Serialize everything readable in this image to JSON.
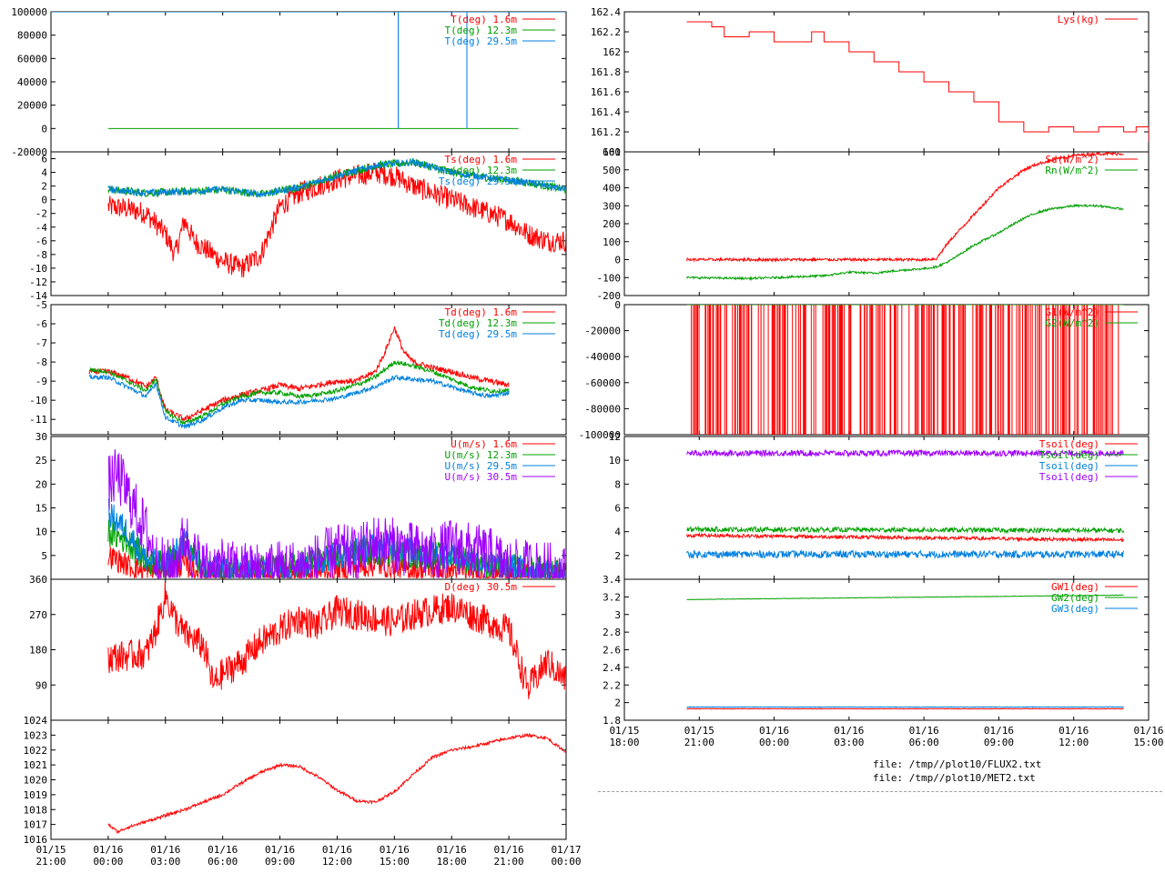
{
  "colors": {
    "red": "#ff0000",
    "green": "#00a000",
    "blue": "#0080e0",
    "purple": "#a000ff",
    "axis": "#000000"
  },
  "files": [
    "file: /tmp//plot10/FLUX2.txt",
    "file: /tmp//plot10/MET2.txt"
  ],
  "left_x_axis": {
    "labels": [
      [
        "01/15",
        "21:00"
      ],
      [
        "01/16",
        "00:00"
      ],
      [
        "01/16",
        "03:00"
      ],
      [
        "01/16",
        "06:00"
      ],
      [
        "01/16",
        "09:00"
      ],
      [
        "01/16",
        "12:00"
      ],
      [
        "01/16",
        "15:00"
      ],
      [
        "01/16",
        "18:00"
      ],
      [
        "01/16",
        "21:00"
      ],
      [
        "01/17",
        "00:00"
      ]
    ],
    "range_hours": [
      -3,
      24
    ]
  },
  "right_x_axis": {
    "labels": [
      [
        "01/15",
        "18:00"
      ],
      [
        "01/15",
        "21:00"
      ],
      [
        "01/16",
        "00:00"
      ],
      [
        "01/16",
        "03:00"
      ],
      [
        "01/16",
        "06:00"
      ],
      [
        "01/16",
        "09:00"
      ],
      [
        "01/16",
        "12:00"
      ],
      [
        "01/16",
        "15:00"
      ]
    ],
    "range_hours": [
      -6,
      15
    ]
  },
  "chart_data": [
    {
      "id": "T",
      "type": "line",
      "col": "left",
      "ylim": [
        -20000,
        100000
      ],
      "yticks": [
        "-20000",
        "0",
        "20000",
        "40000",
        "60000",
        "80000",
        "100000"
      ],
      "series": [
        {
          "name": "T(deg)  1.6m",
          "color": "red"
        },
        {
          "name": "T(deg) 12.3m",
          "color": "green"
        },
        {
          "name": "T(deg) 29.5m",
          "color": "blue"
        }
      ],
      "x_range_hours": [
        0,
        21.5
      ],
      "baseline_value": 0,
      "spikes_hours": [
        15.2,
        18.8
      ],
      "spike_value": 100000
    },
    {
      "id": "Ts",
      "type": "line",
      "col": "left",
      "ylim": [
        -14,
        7
      ],
      "yticks": [
        "-14",
        "-12",
        "-10",
        "-8",
        "-6",
        "-4",
        "-2",
        "0",
        "2",
        "4",
        "6"
      ],
      "series": [
        {
          "name": "Ts(deg)  1.6m",
          "color": "red",
          "x_hours": [
            0,
            1,
            2,
            3,
            3.5,
            4,
            4.5,
            5,
            6,
            7,
            8,
            9,
            10,
            11,
            12,
            13,
            14,
            15,
            16,
            17,
            18,
            19,
            20,
            21,
            22,
            23,
            24
          ],
          "y": [
            -1,
            -1.3,
            -2,
            -5,
            -8,
            -3,
            -6,
            -7,
            -9,
            -10,
            -8,
            -1,
            1,
            2,
            3,
            3.5,
            4,
            3.5,
            2,
            1,
            0,
            -1,
            -2,
            -3,
            -5,
            -6,
            -6
          ]
        },
        {
          "name": "Ts(deg) 12.3m",
          "color": "green",
          "x_hours": [
            0,
            2,
            4,
            6,
            8,
            10,
            12,
            14,
            16,
            18,
            20,
            22,
            24
          ],
          "y": [
            1.5,
            1,
            1.2,
            1.5,
            0.8,
            1.8,
            3.5,
            5,
            5.5,
            4,
            3.2,
            2.5,
            1.5
          ]
        },
        {
          "name": "Ts(deg) 29.5m",
          "color": "blue",
          "x_hours": [
            0,
            2,
            4,
            6,
            8,
            10,
            12,
            14,
            16,
            18,
            20,
            22,
            24
          ],
          "y": [
            1.5,
            1,
            1.2,
            1.5,
            0.8,
            1.8,
            3.5,
            5,
            5.5,
            4,
            3.2,
            2.5,
            1.5
          ]
        }
      ]
    },
    {
      "id": "Td",
      "type": "line",
      "col": "left",
      "ylim": [
        -11.8,
        -5
      ],
      "yticks": [
        "-11",
        "-10",
        "-9",
        "-8",
        "-7",
        "-6",
        "-5"
      ],
      "series": [
        {
          "name": "Td(deg)  1.6m",
          "color": "red",
          "x_hours": [
            -1,
            0,
            1,
            2,
            2.5,
            3,
            4,
            5,
            6,
            7,
            8,
            9,
            10,
            11,
            12,
            13,
            14,
            14.5,
            15,
            15.5,
            16,
            17,
            18,
            19,
            20,
            21
          ],
          "y": [
            -8.5,
            -8.5,
            -8.8,
            -9.3,
            -8.8,
            -10.5,
            -11,
            -10.5,
            -10,
            -9.7,
            -9.5,
            -9.2,
            -9.4,
            -9.2,
            -9.0,
            -9.0,
            -8.5,
            -7.5,
            -6.2,
            -7.5,
            -8.0,
            -8.3,
            -8.5,
            -8.8,
            -9.0,
            -9.2
          ]
        },
        {
          "name": "Td(deg) 12.3m",
          "color": "green",
          "x_hours": [
            -1,
            0,
            1,
            2,
            2.5,
            3,
            4,
            5,
            6,
            7,
            8,
            9,
            10,
            11,
            12,
            13,
            14,
            15,
            16,
            17,
            18,
            19,
            20,
            21
          ],
          "y": [
            -8.4,
            -8.5,
            -9,
            -9.5,
            -8.9,
            -10.6,
            -11.2,
            -10.8,
            -10.2,
            -9.8,
            -9.6,
            -9.6,
            -9.8,
            -9.7,
            -9.5,
            -9.2,
            -8.8,
            -8.0,
            -8.2,
            -8.5,
            -8.9,
            -9.3,
            -9.5,
            -9.5
          ]
        },
        {
          "name": "Td(deg) 29.5m",
          "color": "blue",
          "x_hours": [
            -1,
            0,
            1,
            2,
            2.5,
            3,
            4,
            5,
            6,
            7,
            8,
            9,
            10,
            11,
            12,
            13,
            14,
            15,
            16,
            17,
            18,
            19,
            20,
            21
          ],
          "y": [
            -8.8,
            -8.8,
            -9.3,
            -9.8,
            -9.1,
            -10.9,
            -11.4,
            -11.0,
            -10.4,
            -10.0,
            -10.0,
            -10.1,
            -10.1,
            -10.0,
            -9.9,
            -9.6,
            -9.3,
            -8.8,
            -8.9,
            -9.0,
            -9.3,
            -9.6,
            -9.8,
            -9.6
          ]
        }
      ]
    },
    {
      "id": "U",
      "type": "line",
      "col": "left",
      "ylim": [
        0,
        30
      ],
      "yticks": [
        "5",
        "10",
        "15",
        "20",
        "25",
        "30"
      ],
      "series": [
        {
          "name": "U(m/s)  1.6m",
          "color": "red",
          "x_hours": [
            0,
            1,
            2,
            3,
            4,
            5,
            6,
            8,
            10,
            12,
            14,
            16,
            18,
            20,
            22,
            24
          ],
          "y": [
            5,
            3,
            1.5,
            2,
            3,
            1,
            1,
            1,
            1,
            2,
            3,
            2,
            2,
            1,
            1,
            1
          ]
        },
        {
          "name": "U(m/s) 12.3m",
          "color": "green",
          "x_hours": [
            0,
            1,
            2,
            3,
            4,
            5,
            6,
            8,
            10,
            12,
            14,
            16,
            18,
            20,
            22,
            24
          ],
          "y": [
            10,
            8,
            4,
            3,
            8,
            2,
            2,
            2,
            3,
            5,
            6,
            5,
            5,
            3,
            2,
            1
          ]
        },
        {
          "name": "U(m/s) 29.5m",
          "color": "blue",
          "x_hours": [
            0,
            1,
            2,
            3,
            4,
            5,
            6,
            8,
            10,
            12,
            14,
            16,
            18,
            20,
            22,
            24
          ],
          "y": [
            14,
            10,
            4,
            3,
            8,
            2,
            2,
            2,
            3,
            5,
            7,
            6,
            5,
            3,
            2,
            1
          ]
        },
        {
          "name": "U(m/s) 30.5m",
          "color": "purple",
          "x_hours": [
            0,
            0.5,
            1,
            1.5,
            2,
            2.5,
            3,
            3.5,
            4,
            4.5,
            5,
            6,
            7,
            8,
            9,
            10,
            11,
            12,
            13,
            14,
            15,
            16,
            17,
            18,
            19,
            20,
            21,
            22,
            23,
            24
          ],
          "y": [
            20,
            22,
            18,
            14,
            10,
            4,
            2.5,
            3,
            9,
            5,
            2.5,
            2.5,
            2,
            2,
            2.5,
            2.5,
            4,
            6,
            5,
            8,
            7,
            6,
            5,
            7,
            6,
            5,
            2.5,
            2.5,
            2,
            1
          ]
        }
      ]
    },
    {
      "id": "D",
      "type": "line",
      "col": "left",
      "ylim": [
        0,
        360
      ],
      "yticks": [
        "90",
        "180",
        "270",
        "360"
      ],
      "series": [
        {
          "name": "D(deg) 30.5m",
          "color": "red",
          "x_hours": [
            0,
            1,
            2,
            2.5,
            3,
            3.5,
            4,
            5,
            5.5,
            6,
            7,
            8,
            9,
            10,
            11,
            12,
            13,
            14,
            15,
            16,
            17,
            18,
            19,
            20,
            21,
            22,
            23,
            24
          ],
          "y": [
            160,
            165,
            170,
            230,
            320,
            260,
            220,
            190,
            90,
            120,
            150,
            200,
            230,
            260,
            240,
            280,
            270,
            260,
            250,
            270,
            280,
            290,
            270,
            250,
            230,
            80,
            150,
            100
          ]
        }
      ]
    },
    {
      "id": "P",
      "type": "line",
      "col": "left",
      "ylim": [
        1016,
        1024
      ],
      "yticks": [
        "1016",
        "1017",
        "1018",
        "1019",
        "1020",
        "1021",
        "1022",
        "1023",
        "1024"
      ],
      "series": [
        {
          "name": "",
          "color": "red",
          "x_hours": [
            0,
            0.5,
            1,
            2,
            3,
            4,
            5,
            6,
            7,
            8,
            9,
            10,
            11,
            12,
            13,
            14,
            15,
            16,
            17,
            18,
            19,
            20,
            21,
            22,
            23,
            23.5,
            24
          ],
          "y": [
            1017,
            1016.5,
            1016.8,
            1017.2,
            1017.6,
            1018,
            1018.5,
            1019,
            1019.8,
            1020.5,
            1021,
            1020.9,
            1020.2,
            1019.3,
            1018.6,
            1018.5,
            1019.2,
            1020.4,
            1021.5,
            1022,
            1022.2,
            1022.5,
            1022.8,
            1023,
            1022.8,
            1022.3,
            1021.9
          ]
        }
      ]
    },
    {
      "id": "Lys",
      "type": "line",
      "col": "right",
      "ylim": [
        161,
        162.4
      ],
      "yticks": [
        "161",
        "161.2",
        "161.4",
        "161.6",
        "161.8",
        "162",
        "162.2",
        "162.4"
      ],
      "series": [
        {
          "name": "Lys(kg)",
          "color": "red",
          "step": true,
          "x_hours": [
            -3.5,
            -2.5,
            -2,
            -1,
            0,
            1,
            1.5,
            2,
            3,
            4,
            5,
            6,
            7,
            8,
            9,
            10,
            11,
            12,
            13,
            14,
            14.5,
            15
          ],
          "y": [
            162.3,
            162.25,
            162.15,
            162.2,
            162.1,
            162.1,
            162.2,
            162.1,
            162.0,
            161.9,
            161.8,
            161.7,
            161.6,
            161.5,
            161.3,
            161.2,
            161.25,
            161.2,
            161.25,
            161.2,
            161.25,
            161.1
          ]
        }
      ]
    },
    {
      "id": "Rad",
      "type": "line",
      "col": "right",
      "ylim": [
        -200,
        600
      ],
      "yticks": [
        "-200",
        "-100",
        "0",
        "100",
        "200",
        "300",
        "400",
        "500",
        "600"
      ],
      "series": [
        {
          "name": "Sd(W/m^2)",
          "color": "red",
          "x_hours": [
            -3.5,
            0,
            3,
            6,
            6.5,
            7,
            8,
            9,
            10,
            10.5,
            11,
            12,
            13,
            14
          ],
          "y": [
            0,
            0,
            0,
            0,
            5,
            100,
            250,
            400,
            500,
            530,
            550,
            580,
            590,
            590
          ]
        },
        {
          "name": "Rn(W/m^2)",
          "color": "green",
          "x_hours": [
            -3.5,
            -1,
            0,
            1,
            2,
            3,
            4,
            5,
            6,
            6.5,
            7,
            8,
            9,
            10,
            10.5,
            11,
            12,
            13,
            14
          ],
          "y": [
            -100,
            -105,
            -100,
            -95,
            -90,
            -70,
            -75,
            -60,
            -50,
            -40,
            -10,
            80,
            150,
            230,
            260,
            280,
            300,
            300,
            280
          ]
        }
      ]
    },
    {
      "id": "G",
      "type": "line",
      "col": "right",
      "ylim": [
        -100000,
        0
      ],
      "yticks": [
        "-100000",
        "-80000",
        "-60000",
        "-40000",
        "-20000",
        "0"
      ],
      "series": [
        {
          "name": "G1(W/m^2)",
          "color": "red",
          "baseline_value": 0,
          "spike_value": -100000,
          "x_range_hours": [
            -3.5,
            14
          ]
        },
        {
          "name": "G2(W/m^2)",
          "color": "green",
          "baseline_value": 0,
          "x_range_hours": [
            -3.5,
            14
          ]
        }
      ]
    },
    {
      "id": "Tsoil",
      "type": "line",
      "col": "right",
      "ylim": [
        0,
        12
      ],
      "yticks": [
        "2",
        "4",
        "6",
        "8",
        "10",
        "12"
      ],
      "series": [
        {
          "name": "Tsoil(deg)",
          "color": "red",
          "x_hours": [
            -3.5,
            14
          ],
          "y": [
            3.7,
            3.3
          ]
        },
        {
          "name": "Tsoil(deg)",
          "color": "green",
          "x_hours": [
            -3.5,
            14
          ],
          "y": [
            4.2,
            4.1
          ]
        },
        {
          "name": "Tsoil(deg)",
          "color": "blue",
          "x_hours": [
            -3.5,
            14
          ],
          "y": [
            2.1,
            2.1
          ]
        },
        {
          "name": "Tsoil(deg)",
          "color": "purple",
          "x_hours": [
            -3.5,
            14
          ],
          "y": [
            10.6,
            10.6
          ]
        }
      ]
    },
    {
      "id": "GW",
      "type": "line",
      "col": "right",
      "ylim": [
        1.8,
        3.4
      ],
      "yticks": [
        "1.8",
        "2",
        "2.2",
        "2.4",
        "2.6",
        "2.8",
        "3",
        "3.2",
        "3.4"
      ],
      "series": [
        {
          "name": "GW1(deg)",
          "color": "red",
          "x_hours": [
            -3.5,
            14
          ],
          "y": [
            1.93,
            1.93
          ]
        },
        {
          "name": "GW2(deg)",
          "color": "green",
          "x_hours": [
            -3.5,
            14
          ],
          "y": [
            3.17,
            3.22
          ]
        },
        {
          "name": "GW3(deg)",
          "color": "blue",
          "x_hours": [
            -3.5,
            14
          ],
          "y": [
            1.95,
            1.95
          ]
        }
      ]
    }
  ]
}
